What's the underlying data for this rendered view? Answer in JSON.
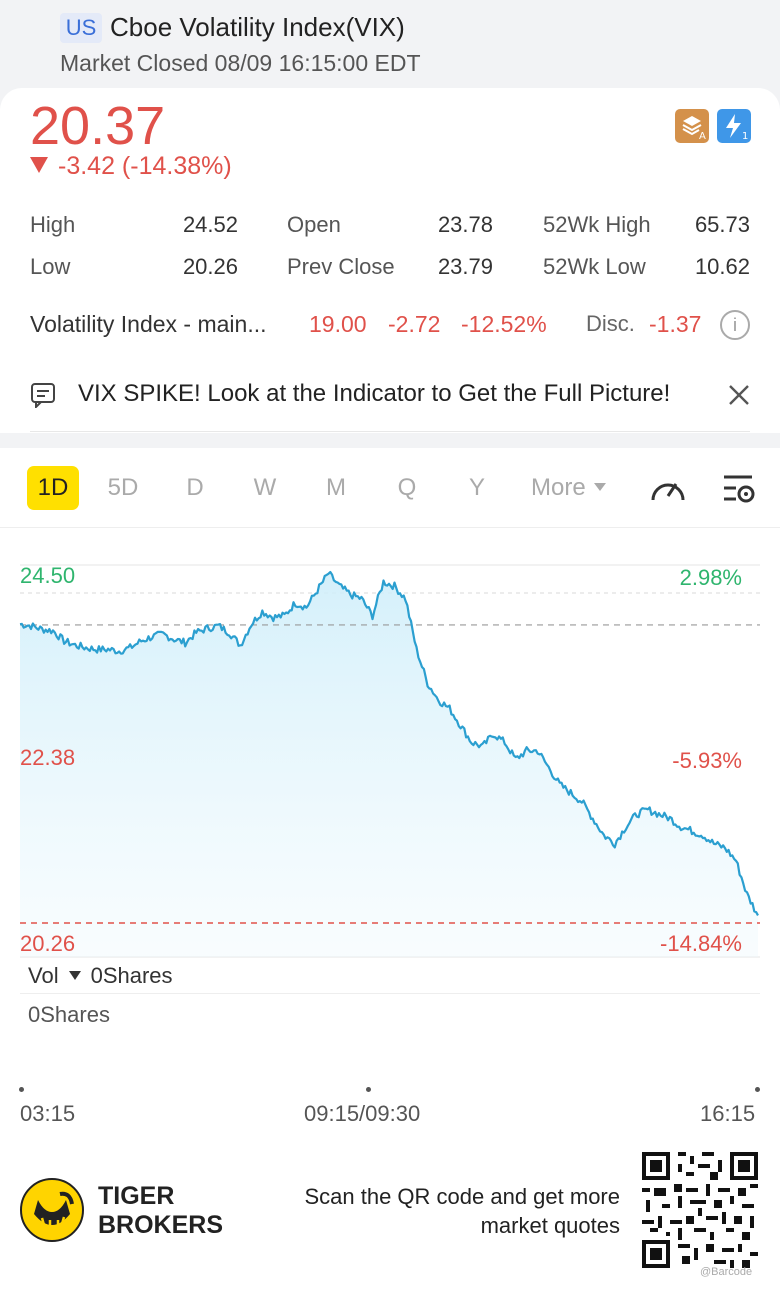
{
  "header": {
    "market_badge": "US",
    "title": "Cboe Volatility Index(VIX)",
    "status": "Market Closed 08/09 16:15:00 EDT"
  },
  "quote": {
    "price": "20.37",
    "change": "-3.42 (-14.38%)",
    "stats": [
      {
        "label": "High",
        "value": "24.52"
      },
      {
        "label": "Open",
        "value": "23.78"
      },
      {
        "label": "52Wk High",
        "value": "65.73"
      },
      {
        "label": "Low",
        "value": "20.26"
      },
      {
        "label": "Prev Close",
        "value": "23.79"
      },
      {
        "label": "52Wk Low",
        "value": "10.62"
      }
    ]
  },
  "futures": {
    "name": "Volatility Index - main...",
    "price": "19.00",
    "change": "-2.72",
    "change_pct": "-12.52%",
    "disc_label": "Disc.",
    "disc_value": "-1.37"
  },
  "news": {
    "text": "VIX SPIKE! Look at the Indicator to Get the Full Picture!"
  },
  "tabs": [
    {
      "label": "1D",
      "active": true
    },
    {
      "label": "5D"
    },
    {
      "label": "D"
    },
    {
      "label": "W"
    },
    {
      "label": "M"
    },
    {
      "label": "Q"
    },
    {
      "label": "Y"
    },
    {
      "label": "More"
    }
  ],
  "chart_data": {
    "type": "area",
    "title": "",
    "prev_close": 23.79,
    "low": 20.26,
    "ylim": [
      20.26,
      24.5
    ],
    "y_labels_left": [
      "24.50",
      "22.38",
      "20.26"
    ],
    "y_labels_right": [
      "2.98%",
      "-5.93%",
      "-14.84%"
    ],
    "x_labels": [
      "03:15",
      "09:15/09:30",
      "16:15"
    ],
    "series": [
      {
        "name": "VIX",
        "values": [
          23.8,
          23.78,
          23.74,
          23.72,
          23.6,
          23.55,
          23.52,
          23.5,
          23.5,
          23.48,
          23.52,
          23.6,
          23.65,
          23.68,
          23.62,
          23.58,
          23.7,
          23.75,
          23.78,
          23.7,
          23.55,
          23.8,
          23.95,
          23.88,
          23.9,
          24.05,
          24.0,
          24.2,
          24.4,
          24.25,
          24.15,
          24.1,
          23.9,
          24.3,
          24.25,
          24.1,
          23.5,
          23.1,
          22.9,
          22.8,
          22.6,
          22.4,
          22.35,
          22.5,
          22.4,
          22.2,
          22.3,
          22.3,
          22.1,
          21.9,
          21.8,
          21.7,
          21.5,
          21.3,
          21.2,
          21.4,
          21.55,
          21.6,
          21.55,
          21.5,
          21.4,
          21.35,
          21.3,
          21.2,
          21.15,
          21.0,
          20.6,
          20.35
        ]
      }
    ],
    "volume_label": "Vol",
    "volume_value": "0Shares",
    "volume_max": "0Shares"
  },
  "footer": {
    "brand_line1": "TIGER",
    "brand_line2": "BROKERS",
    "scan_text": "Scan the QR code and get more market quotes",
    "qr_tag": "@Barcode"
  },
  "colors": {
    "up": "#2fb56e",
    "down": "#e0514a",
    "line": "#2b9fd0",
    "accent": "#ffe000"
  }
}
